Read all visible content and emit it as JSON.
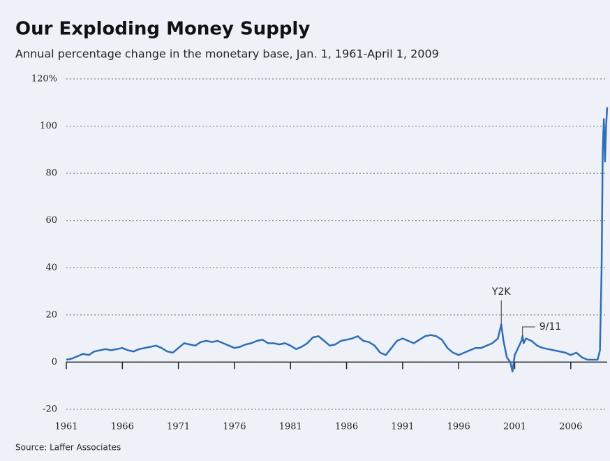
{
  "chart_data": {
    "type": "line",
    "title": "Our Exploding Money Supply",
    "subtitle": "Annual percentage change in the monetary base, Jan. 1, 1961-April 1, 2009",
    "source": "Source: Laffer Associates",
    "annotations": [
      "Y2K",
      "9/11"
    ],
    "x": [
      1961,
      1961.5,
      1962,
      1962.5,
      1963,
      1963.5,
      1964,
      1964.5,
      1965,
      1965.5,
      1966,
      1966.5,
      1967,
      1967.5,
      1968,
      1968.5,
      1969,
      1969.5,
      1970,
      1970.5,
      1971,
      1971.5,
      1972,
      1972.5,
      1973,
      1973.5,
      1974,
      1974.5,
      1975,
      1975.5,
      1976,
      1976.5,
      1977,
      1977.5,
      1978,
      1978.5,
      1979,
      1979.5,
      1980,
      1980.5,
      1981,
      1981.5,
      1982,
      1982.5,
      1983,
      1983.5,
      1984,
      1984.5,
      1985,
      1985.5,
      1986,
      1986.5,
      1987,
      1987.5,
      1988,
      1988.5,
      1989,
      1989.5,
      1990,
      1990.5,
      1991,
      1991.5,
      1992,
      1992.5,
      1993,
      1993.5,
      1994,
      1994.5,
      1995,
      1995.5,
      1996,
      1996.5,
      1997,
      1997.5,
      1998,
      1998.5,
      1999,
      1999.5,
      1999.8,
      2000,
      2000.3,
      2000.6,
      2000.8,
      2001,
      2001.3,
      2001.6,
      2001.7,
      2001.8,
      2002,
      2002.5,
      2003,
      2003.5,
      2004,
      2004.5,
      2005,
      2005.5,
      2006,
      2006.5,
      2007,
      2007.5,
      2008,
      2008.4,
      2008.6,
      2008.75,
      2008.85,
      2008.95,
      2009.05,
      2009.15,
      2009.25
    ],
    "series": [
      {
        "name": "Monetary base",
        "color": "#2f6db5",
        "values": [
          1,
          1.5,
          2.5,
          3.5,
          3,
          4.5,
          5,
          5.5,
          5,
          5.5,
          6,
          5,
          4.5,
          5.5,
          6,
          6.5,
          7,
          6,
          4.5,
          4,
          6,
          8,
          7.5,
          7,
          8.5,
          9,
          8.5,
          9,
          8,
          7,
          6,
          6.5,
          7.5,
          8,
          9,
          9.5,
          8,
          8,
          7.5,
          8,
          7,
          5.5,
          6.5,
          8,
          10.5,
          11,
          9,
          7,
          7.5,
          9,
          9.5,
          10,
          11,
          9,
          8.5,
          7,
          4,
          3,
          6,
          9,
          10,
          9,
          8,
          9.5,
          11,
          11.5,
          11,
          9.5,
          6,
          4,
          3,
          4,
          5,
          6,
          6,
          7,
          8,
          10,
          16,
          9,
          2,
          0,
          -4,
          3,
          6,
          9,
          11,
          8,
          10,
          9,
          7,
          6,
          5.5,
          5,
          4.5,
          4,
          3,
          4,
          2,
          1,
          1,
          1,
          5,
          40,
          90,
          103,
          85,
          100,
          108
        ]
      }
    ],
    "xlim": [
      1961,
      2009.25
    ],
    "xticks": [
      1961,
      1966,
      1971,
      1976,
      1981,
      1986,
      1991,
      1996,
      2001,
      2006
    ],
    "ylim": [
      -20,
      120
    ],
    "yticks": [
      {
        "value": 120,
        "label": "120%"
      },
      100,
      80,
      60,
      40,
      20,
      0,
      -20
    ],
    "grid": true
  }
}
